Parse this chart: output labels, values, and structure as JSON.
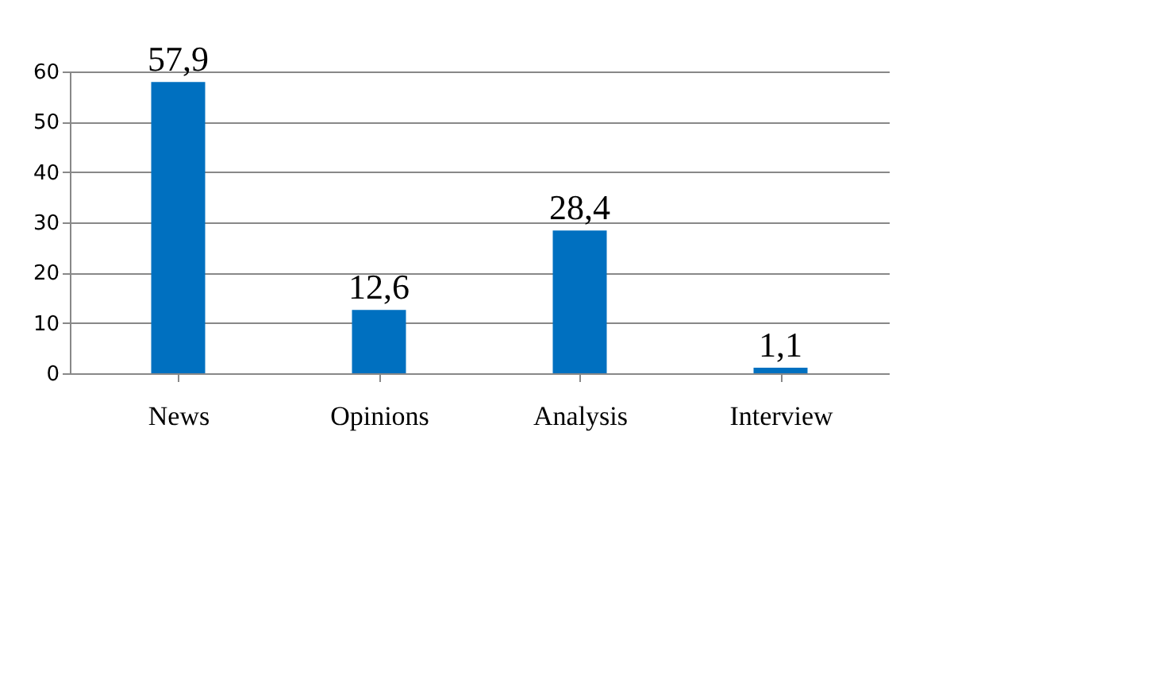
{
  "chart_data": {
    "type": "bar",
    "categories": [
      "News",
      "Opinions",
      "Analysis",
      "Interview"
    ],
    "values": [
      57.9,
      12.6,
      28.4,
      1.1
    ],
    "value_labels": [
      "57,9",
      "12,6",
      "28,4",
      "1,1"
    ],
    "color": "#0070c0",
    "ylim": [
      0,
      60
    ],
    "yticks": [
      0,
      10,
      20,
      30,
      40,
      50,
      60
    ],
    "grid": "y"
  }
}
